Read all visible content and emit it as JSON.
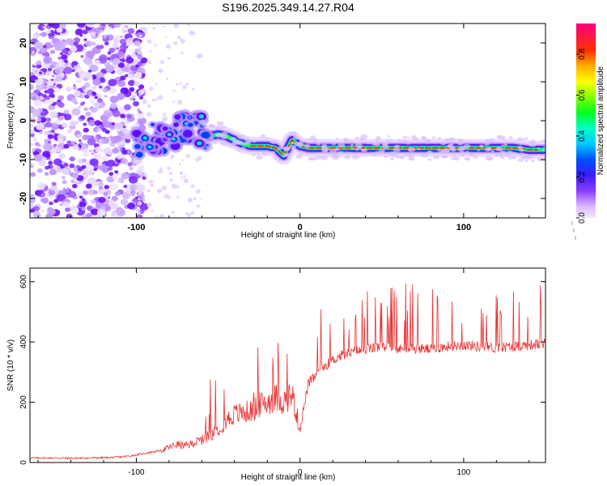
{
  "chart_data": [
    {
      "type": "heatmap",
      "title": "S196.2025.349.14.27.R04",
      "xlabel": "Height of straight line (km)",
      "ylabel": "Frequency (Hz)",
      "xlim": [
        -165,
        150
      ],
      "ylim": [
        -25,
        25
      ],
      "x_ticks": [
        -100,
        0,
        100
      ],
      "x_tick_labels": [
        "-100",
        "0",
        "100"
      ],
      "y_ticks": [
        -20,
        -10,
        0,
        10,
        20
      ],
      "y_tick_labels": [
        "-20",
        "-10",
        "0",
        "10",
        "20"
      ],
      "colorbar": {
        "label": "Normalized spectral amplitude",
        "range": [
          0,
          0.95
        ],
        "ticks": [
          0.0,
          0.2,
          0.4,
          0.6,
          0.8
        ],
        "tick_labels": [
          "0.0",
          "0.2",
          "0.4",
          "0.6",
          "0.8"
        ]
      },
      "ridge": {
        "description_points_x": [
          -165,
          -110,
          -100,
          -90,
          -80,
          -70,
          -65,
          -60,
          -55,
          -50,
          -45,
          -40,
          -35,
          -30,
          -25,
          -20,
          -15,
          -10,
          -5,
          0,
          5,
          10,
          20,
          40,
          60,
          80,
          100,
          110,
          120,
          130,
          140,
          150
        ],
        "description_points_freq": [
          null,
          null,
          -5,
          -4.5,
          -3.5,
          -2,
          -1,
          -3,
          -4,
          -3.5,
          -4,
          -5,
          -6,
          -6.5,
          -6.5,
          -6.5,
          -7,
          -9,
          -5,
          -6.5,
          -7,
          -7,
          -7,
          -7,
          -7,
          -7,
          -7,
          -7,
          -7,
          -7,
          -7.5,
          -7.5
        ]
      }
    },
    {
      "type": "line",
      "xlabel": "Height of straight line (km)",
      "ylabel": "SNR (10 * v/v)",
      "xlim": [
        -165,
        150
      ],
      "ylim": [
        0,
        645
      ],
      "x_ticks": [
        -100,
        0,
        100
      ],
      "x_tick_labels": [
        "-100",
        "0",
        "100"
      ],
      "y_ticks": [
        0,
        200,
        400,
        600
      ],
      "y_tick_labels": [
        "0",
        "200",
        "400",
        "600"
      ],
      "color": "#e83030",
      "series": [
        {
          "name": "SNR",
          "x": [
            -165,
            -150,
            -140,
            -130,
            -120,
            -110,
            -100,
            -95,
            -90,
            -85,
            -80,
            -75,
            -70,
            -65,
            -60,
            -55,
            -50,
            -45,
            -40,
            -35,
            -30,
            -25,
            -20,
            -15,
            -10,
            -5,
            0,
            5,
            10,
            15,
            20,
            25,
            30,
            35,
            40,
            50,
            60,
            70,
            80,
            90,
            100,
            110,
            120,
            130,
            140,
            150
          ],
          "values": [
            15,
            15,
            14,
            15,
            16,
            18,
            25,
            30,
            35,
            40,
            50,
            60,
            55,
            65,
            75,
            90,
            110,
            140,
            160,
            165,
            170,
            190,
            200,
            215,
            200,
            230,
            110,
            260,
            290,
            320,
            340,
            355,
            360,
            370,
            375,
            385,
            375,
            380,
            375,
            385,
            390,
            385,
            380,
            385,
            390,
            395
          ]
        }
      ]
    }
  ]
}
